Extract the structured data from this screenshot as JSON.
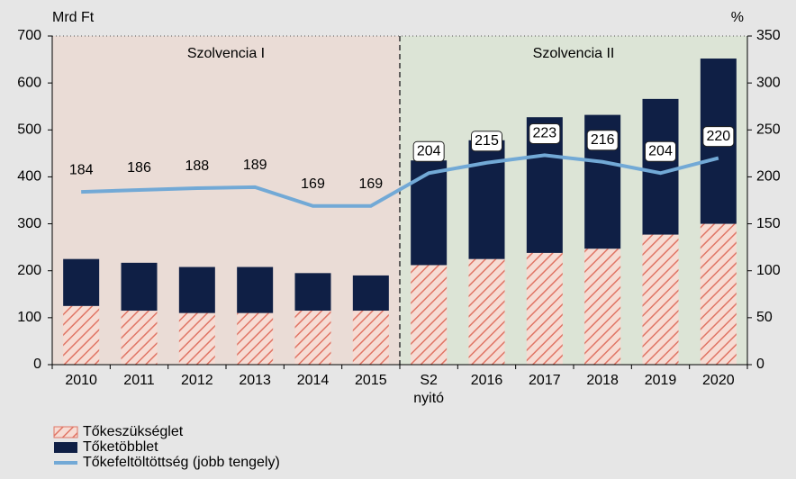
{
  "chart_data": {
    "type": "bar",
    "y_label": "Mrd Ft",
    "y2_label": "%",
    "categories": [
      "2010",
      "2011",
      "2012",
      "2013",
      "2014",
      "2015",
      "S2\nnyitó",
      "2016",
      "2017",
      "2018",
      "2019",
      "2020"
    ],
    "regions": [
      {
        "label": "Szolvencia I",
        "from": "2010",
        "to": "2015",
        "color": "#eadcd6"
      },
      {
        "label": "Szolvencia II",
        "from": "S2\nnyitó",
        "to": "2020",
        "color": "#dce4d6"
      }
    ],
    "series": [
      {
        "name": "Tőkeszükséglet",
        "color": "#e07565",
        "hatch": true,
        "values": [
          125,
          115,
          110,
          110,
          115,
          115,
          212,
          225,
          238,
          247,
          277,
          300
        ]
      },
      {
        "name": "Tőketöbblet",
        "color": "#0f1f45",
        "values": [
          100,
          102,
          98,
          98,
          80,
          75,
          223,
          253,
          289,
          285,
          289,
          352
        ]
      },
      {
        "name": "Tőkefeltöltöttség (jobb tengely)",
        "type": "line",
        "axis": "y2",
        "color": "#72a9d6",
        "values": [
          184,
          186,
          188,
          189,
          169,
          169,
          204,
          215,
          223,
          216,
          204,
          220
        ]
      }
    ],
    "stacked": true,
    "ylim": [
      0,
      700
    ],
    "yticks": [
      0,
      100,
      200,
      300,
      400,
      500,
      600,
      700
    ],
    "y2lim": [
      0,
      350
    ],
    "y2ticks": [
      0,
      50,
      100,
      150,
      200,
      250,
      300,
      350
    ]
  }
}
